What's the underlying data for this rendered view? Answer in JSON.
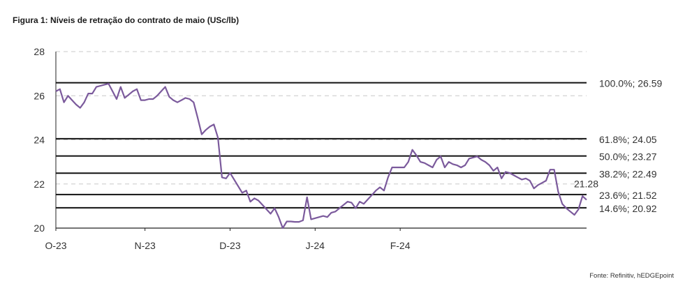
{
  "chart_data": {
    "type": "line",
    "title": "Figura 1: Níveis de retração do contrato de maio (USc/lb)",
    "source": "Fonte: Refinitiv, hEDGEpoint",
    "ylim": [
      20,
      28
    ],
    "y_ticks": [
      20,
      22,
      24,
      26,
      28
    ],
    "x_ticks": [
      {
        "label": "O-23",
        "index": 0
      },
      {
        "label": "N-23",
        "index": 22
      },
      {
        "label": "D-23",
        "index": 43
      },
      {
        "label": "J-24",
        "index": 64
      },
      {
        "label": "F-24",
        "index": 85
      }
    ],
    "grid": "horizontal dashed",
    "line_color": "#7b5a9c",
    "level_color": "#111111",
    "series": [
      {
        "values": [
          26.2,
          26.3,
          25.7,
          26.0,
          25.8,
          25.6,
          25.45,
          25.7,
          26.1,
          26.1,
          26.4,
          26.45,
          26.5,
          26.55,
          26.2,
          25.85,
          26.4,
          25.9,
          26.05,
          26.2,
          26.3,
          25.8,
          25.8,
          25.85,
          25.85,
          26.0,
          26.2,
          26.4,
          25.95,
          25.8,
          25.7,
          25.8,
          25.9,
          25.85,
          25.7,
          25.0,
          24.25,
          24.45,
          24.6,
          24.7,
          24.1,
          22.3,
          22.25,
          22.5,
          22.2,
          21.9,
          21.6,
          21.7,
          21.2,
          21.35,
          21.25,
          21.05,
          20.85,
          20.65,
          20.9,
          20.5,
          20.0,
          20.3,
          20.3,
          20.28,
          20.28,
          20.35,
          21.4,
          20.4,
          20.45,
          20.5,
          20.55,
          20.5,
          20.7,
          20.75,
          20.9,
          21.05,
          21.2,
          21.15,
          20.9,
          21.2,
          21.1,
          21.3,
          21.5,
          21.7,
          21.85,
          21.7,
          22.3,
          22.75,
          22.75,
          22.75,
          22.75,
          23.0,
          23.55,
          23.3,
          23.0,
          22.95,
          22.85,
          22.75,
          23.1,
          23.25,
          22.75,
          23.0,
          22.9,
          22.85,
          22.75,
          22.85,
          23.15,
          23.2,
          23.25,
          23.1,
          23.0,
          22.85,
          22.6,
          22.75,
          22.25,
          22.55,
          22.5,
          22.4,
          22.3,
          22.2,
          22.25,
          22.15,
          21.8,
          21.95,
          22.05,
          22.15,
          22.65,
          22.65,
          21.65,
          21.1,
          20.9,
          20.75,
          20.6,
          20.85,
          21.45,
          21.28
        ]
      }
    ],
    "retracement_levels": [
      {
        "label": "100.0%; 26.59",
        "value": 26.59
      },
      {
        "label": "61.8%; 24.05",
        "value": 24.05
      },
      {
        "label": "50.0%; 23.27",
        "value": 23.27
      },
      {
        "label": "38.2%; 22.49",
        "value": 22.49
      },
      {
        "label": "23.6%; 21.52",
        "value": 21.52
      },
      {
        "label": "14.6%; 20.92",
        "value": 20.92
      }
    ],
    "last_value_label": "21.28",
    "last_value": 21.28
  }
}
